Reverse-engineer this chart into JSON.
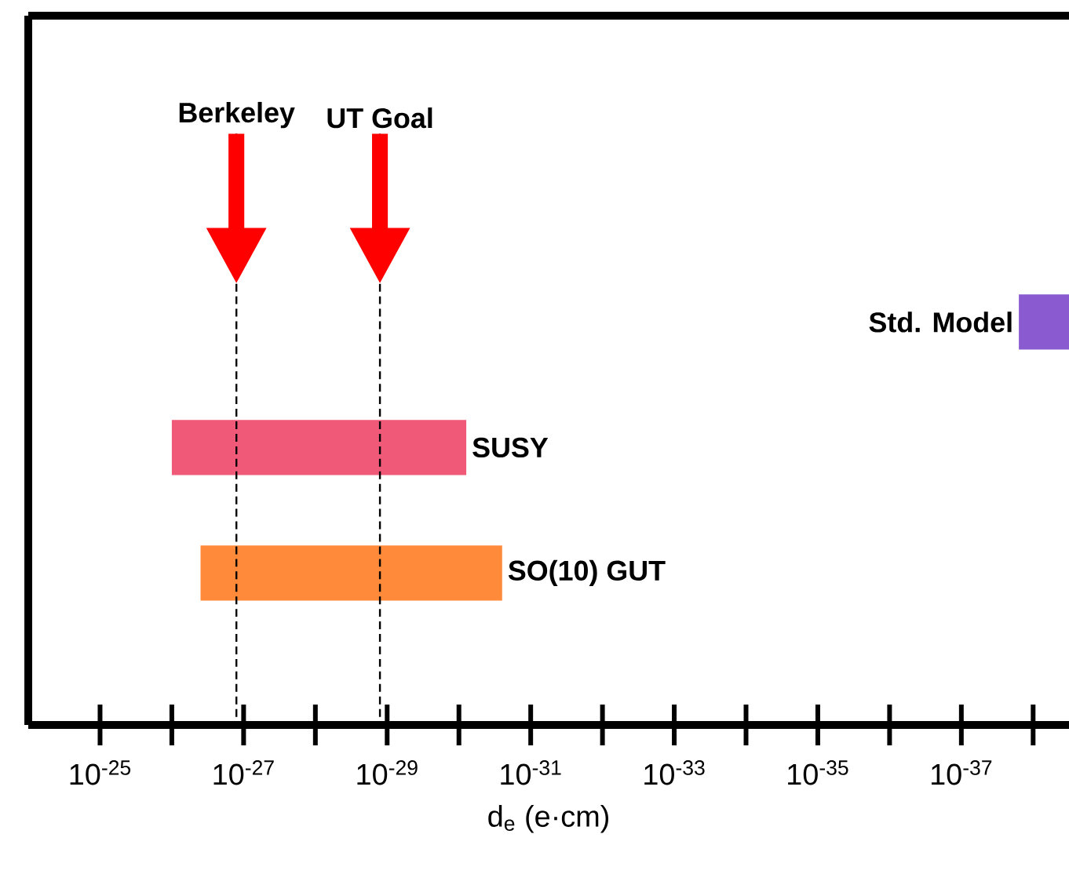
{
  "chart_data": {
    "type": "bar",
    "orientation": "horizontal",
    "log": "x",
    "categories": [
      "Std. Model",
      "SUSY",
      "SO(10) GUT"
    ],
    "base": [
      1.58e-38,
      1e-26,
      3.98e-27
    ],
    "values": [
      -1.264e-38,
      -9.99921e-27,
      -3.97975e-27
    ],
    "colors": [
      "#8a5ad0",
      "#f05a78",
      "#ff8a3a"
    ],
    "xlabel": "d$_{e}$ (e·cm)",
    "xlim": [
      1e-24,
      3.16e-39
    ],
    "xticks": [
      {
        "value": 1e-25,
        "label": "10$^{-25}$"
      },
      {
        "value": 1e-27,
        "label": "10$^{-27}$"
      },
      {
        "value": 1e-29,
        "label": "10$^{-29}$"
      },
      {
        "value": 1e-31,
        "label": "10$^{-31}$"
      },
      {
        "value": 1e-33,
        "label": "10$^{-33}$"
      },
      {
        "value": 1e-35,
        "label": "10$^{-35}$"
      },
      {
        "value": 1e-37,
        "label": "10$^{-37}$"
      }
    ],
    "ref_lines": [
      {
        "axis": "x",
        "value": 1.26e-27,
        "label": "Berkeley",
        "line_style": "dashed"
      },
      {
        "axis": "x",
        "value": 1.26e-29,
        "label": "UT Goal",
        "line_style": "dashed"
      }
    ]
  }
}
